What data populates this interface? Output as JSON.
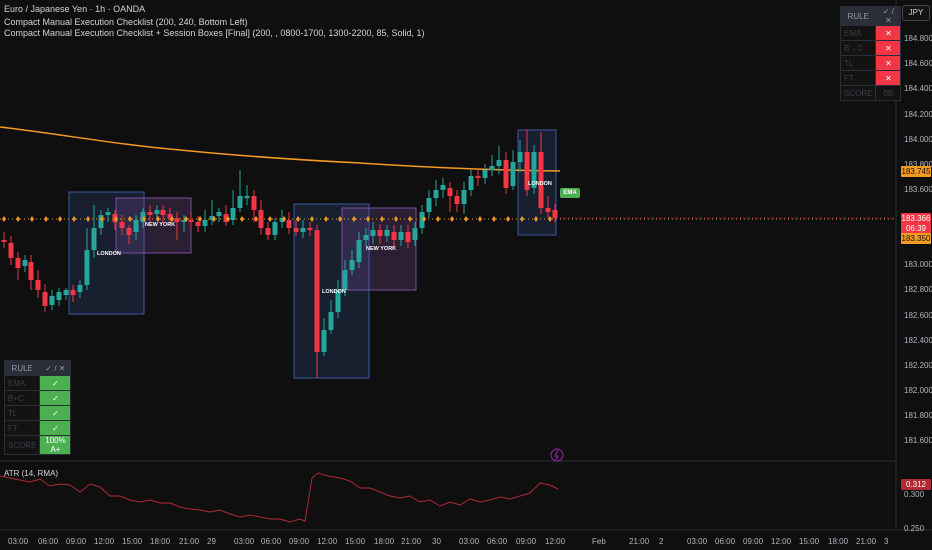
{
  "header": {
    "title": "Euro / Japanese Yen · 1h · OANDA",
    "indicator1": "Compact Manual Execution Checklist (200, 240, Bottom Left)",
    "indicator2": "Compact Manual Execution Checklist + Session Boxes [Final] (200, , 0800-1700, 1300-2200, 85, Solid, 1)"
  },
  "currency_button": "JPY",
  "price_axis": [
    "184.800",
    "184.600",
    "184.400",
    "184.200",
    "184.000",
    "183.800",
    "183.600",
    "183.000",
    "182.800",
    "182.600",
    "182.400",
    "182.200",
    "182.000",
    "181.800",
    "181.600"
  ],
  "price_tags": {
    "ema": "183.745",
    "last": "183.366",
    "countdown": "06:39",
    "dotted": "183.350"
  },
  "atr": {
    "label": "ATR (14, RMA)",
    "value_tag": "0.312",
    "axis": [
      "0.300",
      "0.250"
    ]
  },
  "time_axis": [
    "03:00",
    "06:00",
    "09:00",
    "12:00",
    "15:00",
    "18:00",
    "21:00",
    "29",
    "03:00",
    "06:00",
    "09:00",
    "12:00",
    "15:00",
    "18:00",
    "21:00",
    "30",
    "03:00",
    "06:00",
    "09:00",
    "12:00",
    "Feb",
    "21:00",
    "2",
    "03:00",
    "06:00",
    "09:00",
    "12:00",
    "15:00",
    "18:00",
    "21:00",
    "3"
  ],
  "ema_label": "EMA",
  "sessions": {
    "london": "LONDON",
    "new_york": "NEW YORK"
  },
  "checklist_top": {
    "header": [
      "RULE",
      "✓ / ✕"
    ],
    "rows": [
      {
        "rule": "EMA",
        "mark": "✕"
      },
      {
        "rule": "B→C",
        "mark": "✕"
      },
      {
        "rule": "TL",
        "mark": "✕"
      },
      {
        "rule": "FT",
        "mark": "✕"
      }
    ],
    "score_label": "SCORE",
    "score": "0B"
  },
  "checklist_bottom": {
    "header": [
      "RULE",
      "✓ / ✕"
    ],
    "rows": [
      {
        "rule": "EMA",
        "mark": "✓"
      },
      {
        "rule": "B+C",
        "mark": "✓"
      },
      {
        "rule": "TL",
        "mark": "✓"
      },
      {
        "rule": "FT",
        "mark": "✓"
      }
    ],
    "score_label": "SCORE",
    "score": "100% A+"
  },
  "colors": {
    "up": "#26a69a",
    "down": "#f23645",
    "ema": "#f59a23",
    "london_box": "#3d5aa6",
    "ny_box": "#7b4fa0",
    "atr_line": "#b22833"
  }
}
